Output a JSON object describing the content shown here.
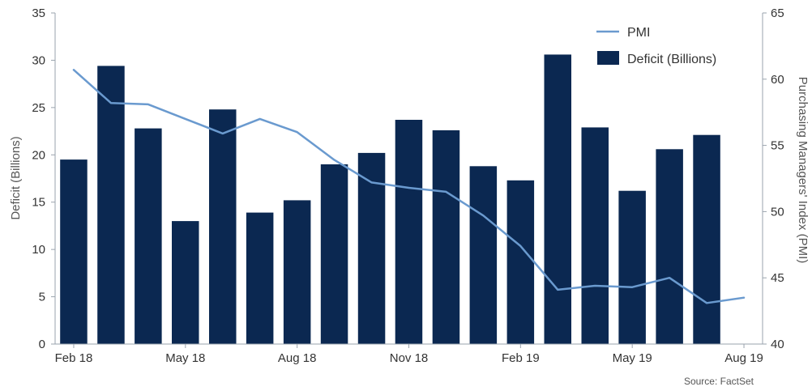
{
  "chart_data": {
    "type": "bar",
    "categories": [
      "Feb 18",
      "Mar 18",
      "Apr 18",
      "May 18",
      "Jun 18",
      "Jul 18",
      "Aug 18",
      "Sep 18",
      "Oct 18",
      "Nov 18",
      "Dec 18",
      "Jan 19",
      "Feb 19",
      "Mar 19",
      "Apr 19",
      "May 19",
      "Jun 19",
      "Jul 19",
      "Aug 19"
    ],
    "x_tick_labels": [
      "Feb 18",
      "May 18",
      "Aug 18",
      "Nov 18",
      "Feb 19",
      "May 19",
      "Aug 19"
    ],
    "series": [
      {
        "name": "Deficit (Billions)",
        "type": "bar",
        "axis": "left",
        "color": "#0b2851",
        "values": [
          19.5,
          29.4,
          22.8,
          13.0,
          24.8,
          13.9,
          15.2,
          19.0,
          20.2,
          23.7,
          22.6,
          18.8,
          17.3,
          30.6,
          22.9,
          16.2,
          20.6,
          22.1,
          null
        ]
      },
      {
        "name": "PMI",
        "type": "line",
        "axis": "right",
        "color": "#6a9acf",
        "values": [
          60.7,
          58.2,
          58.1,
          57.0,
          55.9,
          57.0,
          56.0,
          53.9,
          52.2,
          51.8,
          51.5,
          49.7,
          47.4,
          44.1,
          44.4,
          44.3,
          45.0,
          43.1,
          43.5
        ]
      }
    ],
    "ylabel": "Deficit (Billions)",
    "ylim": [
      0,
      35
    ],
    "yticks": [
      0,
      5,
      10,
      15,
      20,
      25,
      30,
      35
    ],
    "y2label": "Purchasing Managers' Index (PMI)",
    "y2lim": [
      40,
      65
    ],
    "y2ticks": [
      40,
      45,
      50,
      55,
      60,
      65
    ],
    "legend": {
      "position": "top-right",
      "items": [
        {
          "label": "PMI",
          "kind": "line",
          "color": "#6a9acf"
        },
        {
          "label": "Deficit (Billions)",
          "kind": "box",
          "color": "#0b2851"
        }
      ]
    },
    "grid": false,
    "source": "Source: FactSet"
  }
}
